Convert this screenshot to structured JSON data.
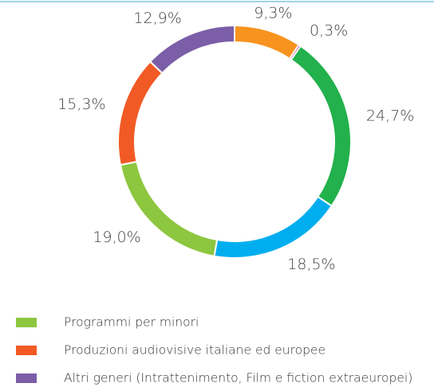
{
  "chart_data": {
    "type": "donut",
    "categories": [
      null,
      null,
      null,
      null,
      "Programmi per minori",
      "Produzioni audiovisive italiane ed europee",
      "Altri generi (Intrattenimento, Film e fiction extraeuropei)"
    ],
    "values": [
      9.3,
      0.3,
      24.7,
      18.5,
      19.0,
      15.3,
      12.9
    ],
    "value_labels": [
      "9,3%",
      "0,3%",
      "24,7%",
      "18,5%",
      "19,0%",
      "15,3%",
      "12,9%"
    ],
    "colors": [
      "#f7931e",
      "#c2187a",
      "#22b14c",
      "#00aeef",
      "#8dc63f",
      "#f15a24",
      "#7b5ea7"
    ]
  }
}
